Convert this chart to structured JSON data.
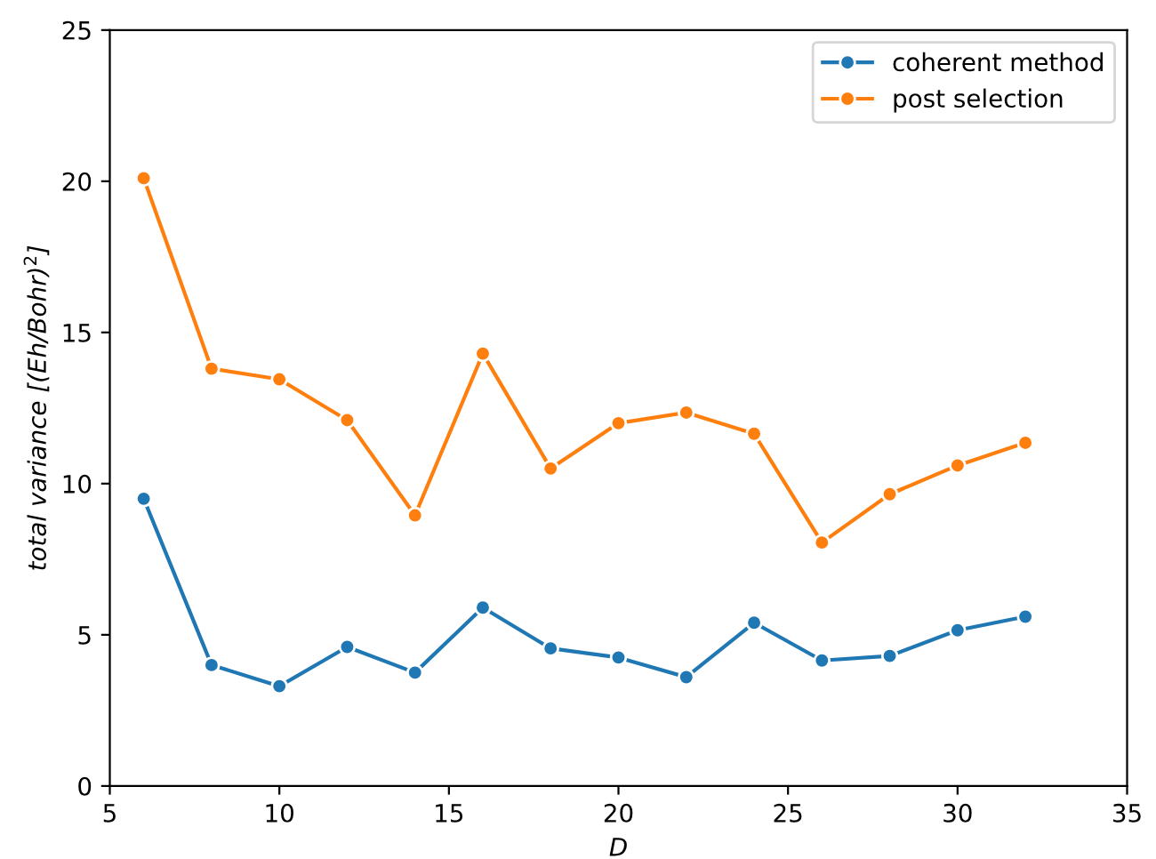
{
  "chart_data": {
    "type": "line",
    "xlabel": "D",
    "ylabel": "total variance [(Eh/Bohr)$^{2}$]",
    "x": [
      6,
      8,
      10,
      12,
      14,
      16,
      18,
      20,
      22,
      24,
      26,
      28,
      30,
      32
    ],
    "series": [
      {
        "name": "coherent method",
        "color": "#1f77b4",
        "values": [
          9.5,
          4.0,
          3.3,
          4.6,
          3.75,
          5.9,
          4.55,
          4.25,
          3.6,
          5.4,
          4.15,
          4.3,
          5.15,
          5.6
        ]
      },
      {
        "name": "post selection",
        "color": "#ff7f0e",
        "values": [
          20.1,
          13.8,
          13.45,
          12.1,
          8.95,
          14.3,
          10.5,
          12.0,
          12.35,
          11.65,
          8.05,
          9.65,
          10.6,
          11.35
        ]
      }
    ],
    "xlim": [
      5,
      35
    ],
    "xticks": [
      5,
      10,
      15,
      20,
      25,
      30,
      35
    ],
    "ylim": [
      0,
      25
    ],
    "yticks": [
      0,
      5,
      10,
      15,
      20,
      25
    ],
    "grid": false,
    "legend": "top right",
    "marker": "circle",
    "line_style": "solid"
  }
}
